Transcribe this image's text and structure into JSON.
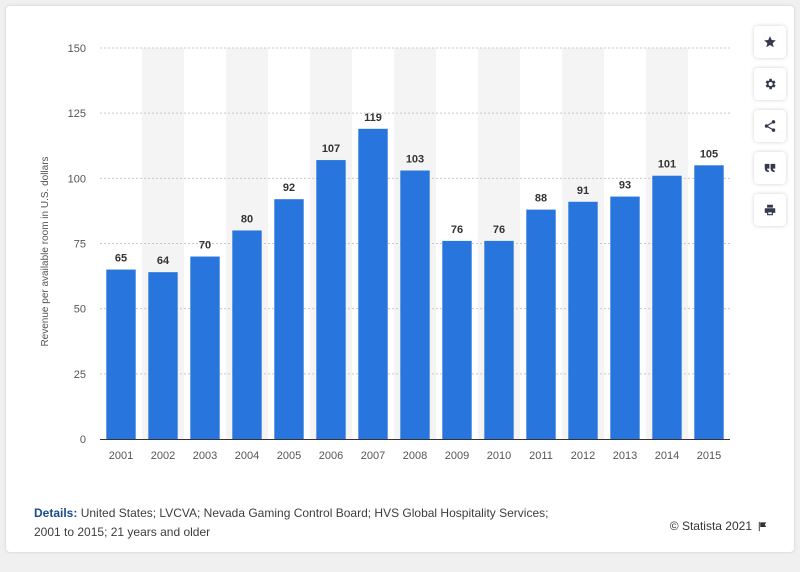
{
  "chart_data": {
    "type": "bar",
    "categories": [
      "2001",
      "2002",
      "2003",
      "2004",
      "2005",
      "2006",
      "2007",
      "2008",
      "2009",
      "2010",
      "2011",
      "2012",
      "2013",
      "2014",
      "2015"
    ],
    "values": [
      65,
      64,
      70,
      80,
      92,
      107,
      119,
      103,
      76,
      76,
      88,
      91,
      93,
      101,
      105
    ],
    "data_labels": [
      "65",
      "64",
      "70",
      "80",
      "92",
      "107",
      "119",
      "103",
      "76",
      "76",
      "88",
      "91",
      "93",
      "101",
      "105"
    ],
    "ylabel": "Revenue per available room in U.S. dollars",
    "xlabel": "",
    "ylim": [
      0,
      150
    ],
    "yticks": [
      0,
      25,
      50,
      75,
      100,
      125,
      150
    ],
    "ytick_labels": [
      "0",
      "25",
      "50",
      "75",
      "100",
      "125",
      "150"
    ],
    "grid": true,
    "legend": "none",
    "bar_color": "#2876dd",
    "alt_band_color": "#f4f4f4",
    "label_color": "#333333"
  },
  "footer": {
    "details_label": "Details:",
    "details_text": "United States; LVCVA; Nevada Gaming Control Board; HVS Global Hospitality Services; 2001 to 2015; 21 years and older",
    "copyright": "© Statista 2021"
  },
  "toolbar": {
    "favorite_icon": "star-icon",
    "settings_icon": "gear-icon",
    "share_icon": "share-icon",
    "cite_icon": "quote-icon",
    "print_icon": "print-icon",
    "icon_color": "#333a4d"
  }
}
